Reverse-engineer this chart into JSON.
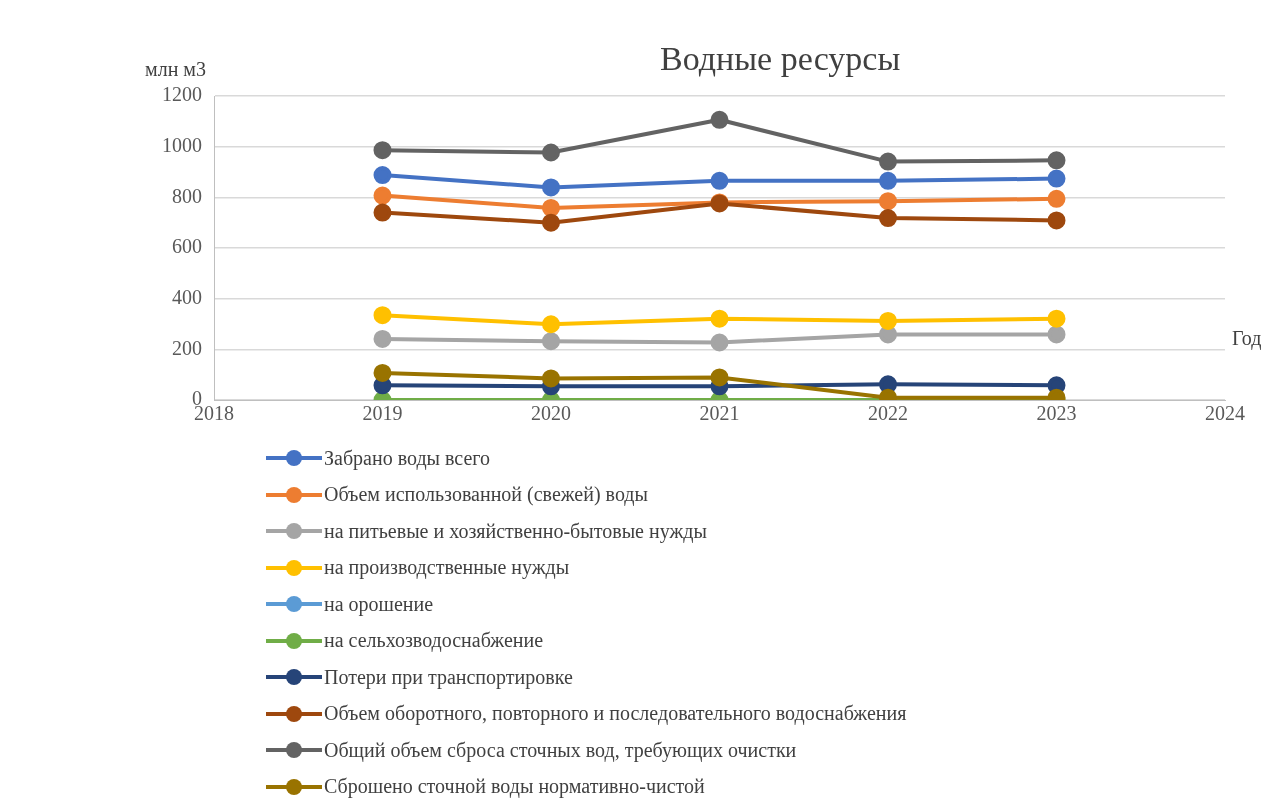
{
  "chart_data": {
    "type": "line",
    "title": "Водные ресурсы",
    "ylabel": "млн м3",
    "xlabel": "Год",
    "x": [
      2019,
      2020,
      2021,
      2022,
      2023
    ],
    "xlim": [
      2018,
      2024
    ],
    "xticks": [
      2018,
      2019,
      2020,
      2021,
      2022,
      2023,
      2024
    ],
    "ylim": [
      0,
      1200
    ],
    "yticks": [
      0,
      200,
      400,
      600,
      800,
      1000,
      1200
    ],
    "grid": "y",
    "legend": "bottom",
    "marker": "circle",
    "line_style": "solid",
    "series": [
      {
        "name": "Забрано воды всего",
        "color": "#4472c4",
        "values": [
          888,
          839,
          865,
          865,
          874
        ]
      },
      {
        "name": "Объем использованной (свежей) воды",
        "color": "#ed7d31",
        "values": [
          807,
          758,
          780,
          785,
          794
        ]
      },
      {
        "name": "на питьевые и хозяйственно-бытовые нужды",
        "color": "#a5a5a5",
        "values": [
          241,
          232,
          227,
          259,
          259
        ]
      },
      {
        "name": "на производственные нужды",
        "color": "#ffc000",
        "values": [
          335,
          299,
          321,
          312,
          321
        ]
      },
      {
        "name": "на орошение",
        "color": "#5b9bd5",
        "values": [
          null,
          null,
          null,
          null,
          null
        ]
      },
      {
        "name": "на сельхозводоснабжение",
        "color": "#70ad47",
        "values": [
          0,
          0,
          0,
          0,
          0
        ]
      },
      {
        "name": "Потери при транспортировке",
        "color": "#264478",
        "values": [
          58,
          54,
          54,
          62,
          58
        ]
      },
      {
        "name": "Объем оборотного, повторного и последовательного водоснабжения",
        "color": "#9e480e",
        "values": [
          740,
          700,
          776,
          718,
          709
        ]
      },
      {
        "name": "Общий объем сброса сточных вод, требующих очистки",
        "color": "#636363",
        "values": [
          986,
          977,
          1106,
          941,
          946
        ]
      },
      {
        "name": "Сброшено сточной воды нормативно-чистой",
        "color": "#997300",
        "values": [
          107,
          85,
          89,
          9,
          9
        ]
      }
    ]
  }
}
